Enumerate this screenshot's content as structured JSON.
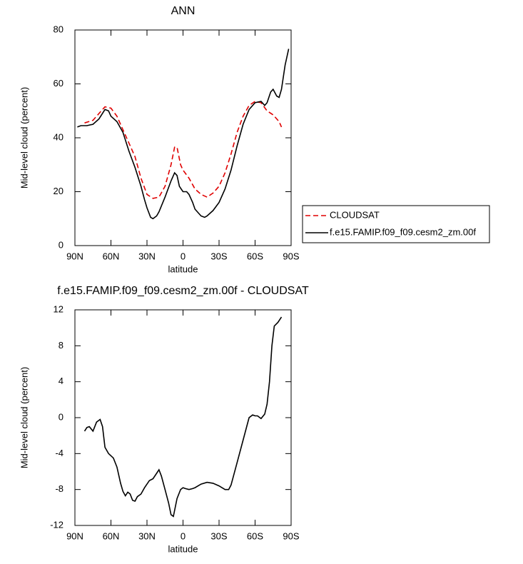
{
  "chart_data": [
    {
      "type": "line",
      "title": "ANN",
      "xlabel": "latitude",
      "ylabel": "Mid-level cloud (percent)",
      "xlim": [
        90,
        -90
      ],
      "xticks": [
        {
          "value": 90,
          "label": "90N"
        },
        {
          "value": 60,
          "label": "60N"
        },
        {
          "value": 30,
          "label": "30N"
        },
        0,
        {
          "value": -30,
          "label": "30S"
        },
        {
          "value": -60,
          "label": "60S"
        },
        {
          "value": -90,
          "label": "90S"
        }
      ],
      "ylim": [
        0,
        80
      ],
      "yticks": [
        0,
        20,
        40,
        60,
        80
      ],
      "legend": "right",
      "series": [
        {
          "name": "CLOUDSAT",
          "color": "#e00000",
          "line_style": "dashed",
          "x": [
            82,
            75,
            70,
            65,
            60,
            55,
            50,
            45,
            40,
            35,
            30,
            25,
            20,
            15,
            10,
            7,
            5,
            2,
            0,
            -5,
            -10,
            -15,
            -20,
            -25,
            -30,
            -35,
            -40,
            -45,
            -50,
            -55,
            -60,
            -65,
            -70,
            -75,
            -80,
            -82
          ],
          "values": [
            45.5,
            46.5,
            49,
            51.5,
            51,
            48,
            43,
            38,
            33,
            25,
            19,
            17.5,
            18,
            22,
            30,
            36.5,
            36.5,
            30,
            28,
            25,
            21,
            19,
            18,
            19.5,
            22,
            27,
            34,
            42,
            48,
            52,
            53.5,
            53,
            50,
            48.5,
            46,
            44
          ]
        },
        {
          "name": "f.e15.FAMIP.f09_f09.cesm2_zm.00f",
          "color": "#000000",
          "line_style": "solid",
          "x": [
            88,
            85,
            80,
            75,
            70,
            65,
            62,
            60,
            55,
            50,
            45,
            40,
            35,
            32,
            30,
            27,
            25,
            22,
            20,
            15,
            10,
            7,
            5,
            3,
            0,
            -3,
            -5,
            -8,
            -10,
            -15,
            -18,
            -20,
            -25,
            -30,
            -35,
            -40,
            -45,
            -50,
            -55,
            -60,
            -65,
            -68,
            -70,
            -73,
            -75,
            -78,
            -80,
            -82,
            -85,
            -88
          ],
          "values": [
            44,
            44.5,
            44.5,
            45,
            47,
            50.5,
            50,
            48,
            46,
            42,
            35,
            29,
            22,
            17,
            14,
            10.5,
            10,
            11,
            12.5,
            18,
            24,
            27,
            26,
            22,
            20,
            20,
            19,
            16,
            13.5,
            11,
            10.5,
            11,
            13,
            16,
            21,
            28,
            37,
            45,
            50.5,
            53,
            53.5,
            52,
            53,
            57,
            58,
            55.5,
            55,
            58,
            67,
            73
          ]
        }
      ]
    },
    {
      "type": "line",
      "title": "f.e15.FAMIP.f09_f09.cesm2_zm.00f - CLOUDSAT",
      "xlabel": "latitude",
      "ylabel": "Mid-level cloud (percent)",
      "xlim": [
        90,
        -90
      ],
      "xticks": [
        {
          "value": 90,
          "label": "90N"
        },
        {
          "value": 60,
          "label": "60N"
        },
        {
          "value": 30,
          "label": "30N"
        },
        0,
        {
          "value": -30,
          "label": "30S"
        },
        {
          "value": -60,
          "label": "60S"
        },
        {
          "value": -90,
          "label": "90S"
        }
      ],
      "ylim": [
        -12,
        12
      ],
      "yticks": [
        -12,
        -8,
        -4,
        0,
        4,
        8,
        12
      ],
      "series": [
        {
          "color": "#000000",
          "line_style": "solid",
          "x": [
            82,
            80,
            78,
            75,
            72,
            69,
            67,
            65,
            62,
            58,
            55,
            52,
            50,
            48,
            46,
            44,
            42,
            40,
            38,
            35,
            32,
            28,
            25,
            22,
            20,
            18,
            15,
            12,
            10,
            8,
            5,
            2,
            0,
            -2,
            -5,
            -8,
            -10,
            -15,
            -20,
            -25,
            -30,
            -35,
            -38,
            -40,
            -45,
            -50,
            -55,
            -58,
            -60,
            -62,
            -65,
            -68,
            -70,
            -72,
            -74,
            -76,
            -79,
            -82
          ],
          "values": [
            -1.5,
            -1.1,
            -1,
            -1.5,
            -0.5,
            -0.2,
            -1,
            -3.3,
            -4,
            -4.5,
            -5.5,
            -7.3,
            -8.2,
            -8.7,
            -8.3,
            -8.5,
            -9.2,
            -9.3,
            -8.8,
            -8.5,
            -7.8,
            -7,
            -6.8,
            -6.2,
            -5.8,
            -6.5,
            -8,
            -9.5,
            -10.8,
            -11,
            -9,
            -8,
            -7.8,
            -7.9,
            -8,
            -7.9,
            -7.8,
            -7.4,
            -7.2,
            -7.3,
            -7.6,
            -8,
            -8,
            -7.5,
            -5,
            -2.5,
            0,
            0.3,
            0.2,
            0.2,
            -0.1,
            0.4,
            1.5,
            4,
            8,
            10.2,
            10.6,
            11.2
          ]
        }
      ]
    }
  ]
}
